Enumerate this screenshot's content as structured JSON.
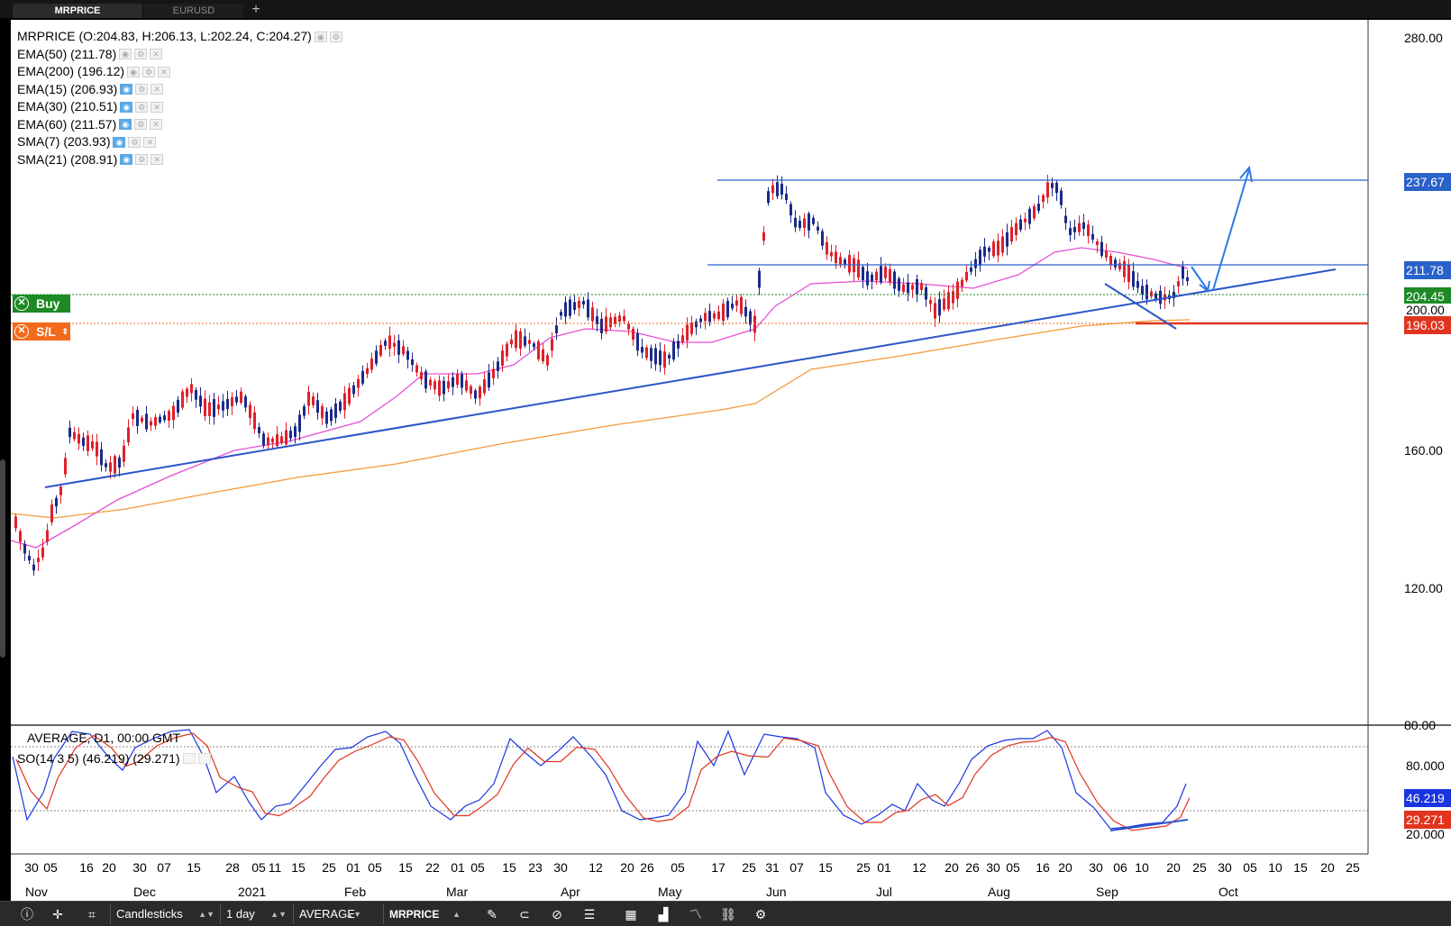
{
  "tabs": [
    {
      "label": "MRPRICE",
      "active": true
    },
    {
      "label": "EURUSD",
      "active": false
    }
  ],
  "legend": {
    "ohlc": "MRPRICE (O:204.83, H:206.13, L:202.24, C:204.27)",
    "indicators": [
      {
        "label": "EMA(50) (211.78)",
        "visible": false
      },
      {
        "label": "EMA(200) (196.12)",
        "visible": false
      },
      {
        "label": "EMA(15) (206.93)",
        "visible": true
      },
      {
        "label": "EMA(30) (210.51)",
        "visible": true
      },
      {
        "label": "EMA(60) (211.57)",
        "visible": true
      },
      {
        "label": "SMA(7) (203.93)",
        "visible": true
      },
      {
        "label": "SMA(21) (208.91)",
        "visible": true
      }
    ]
  },
  "trade_tags": {
    "buy_label": "Buy",
    "sl_label": "S/L"
  },
  "price_axis": {
    "ticks": [
      "280.00",
      "160.00",
      "120.00",
      "80.00"
    ],
    "tags": [
      {
        "label": "237.67",
        "color": "#2962c9"
      },
      {
        "label": "211.78",
        "color": "#2962c9"
      },
      {
        "label": "204.45",
        "color": "#1d8a25"
      },
      {
        "label": "200.00",
        "color": "#ffffff"
      },
      {
        "label": "196.03",
        "color": "#e0341f"
      }
    ]
  },
  "sub_panel": {
    "source": "AVERAGE, D1, 00:00 GMT",
    "so_label": "SO(14 3 5) (46.219) (29.271)",
    "axis": [
      "80.000",
      "46.219",
      "29.271",
      "20.000"
    ]
  },
  "date_axis": {
    "days": [
      "30",
      "05",
      "16",
      "20",
      "30",
      "07",
      "15",
      "28",
      "05",
      "11",
      "15",
      "25",
      "01",
      "05",
      "15",
      "22",
      "01",
      "05",
      "15",
      "23",
      "30",
      "12",
      "20",
      "26",
      "05",
      "17",
      "25",
      "31",
      "07",
      "15",
      "25",
      "01",
      "12",
      "20",
      "26",
      "30",
      "05",
      "16",
      "20",
      "30",
      "06",
      "10",
      "20",
      "25",
      "30",
      "05",
      "10",
      "15",
      "20",
      "25"
    ],
    "months": [
      "Nov",
      "Dec",
      "2021",
      "Feb",
      "Mar",
      "Apr",
      "May",
      "Jun",
      "Jul",
      "Aug",
      "Sep",
      "Oct"
    ]
  },
  "toolbar": {
    "chart_type": "Candlesticks",
    "timeframe": "1 day",
    "source": "AVERAGE",
    "symbol": "MRPRICE"
  },
  "chart_data": {
    "type": "candlestick",
    "ylim": [
      80,
      280
    ],
    "levels": {
      "resistance": 237.67,
      "ema50": 211.78,
      "buy": 204.45,
      "stop_loss": 196.03
    }
  }
}
